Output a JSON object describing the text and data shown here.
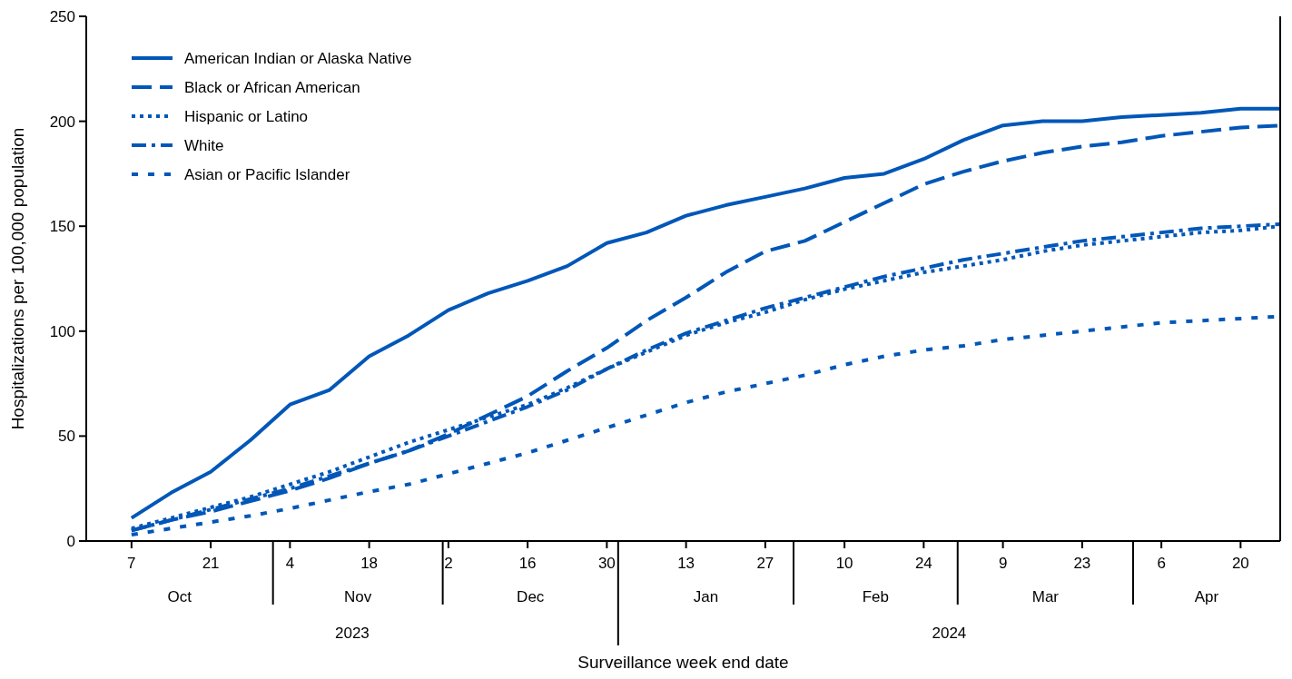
{
  "chart_data": {
    "type": "line",
    "xlabel": "Surveillance week end date",
    "ylabel": "Hospitalizations per 100,000 population",
    "x": [
      "2023-10-07",
      "2023-10-14",
      "2023-10-21",
      "2023-10-28",
      "2023-11-04",
      "2023-11-11",
      "2023-11-18",
      "2023-11-25",
      "2023-12-02",
      "2023-12-09",
      "2023-12-16",
      "2023-12-23",
      "2023-12-30",
      "2024-01-06",
      "2024-01-13",
      "2024-01-20",
      "2024-01-27",
      "2024-02-03",
      "2024-02-10",
      "2024-02-17",
      "2024-02-24",
      "2024-03-02",
      "2024-03-09",
      "2024-03-16",
      "2024-03-23",
      "2024-03-30",
      "2024-04-06",
      "2024-04-13",
      "2024-04-20",
      "2024-04-27"
    ],
    "series": [
      {
        "name": "American Indian or Alaska Native",
        "color": "#0057b8",
        "line_style": "solid",
        "values": [
          11,
          23,
          33,
          48,
          65,
          72,
          88,
          98,
          110,
          118,
          124,
          131,
          142,
          147,
          155,
          160,
          164,
          168,
          173,
          175,
          182,
          191,
          198,
          200,
          200,
          202,
          203,
          204,
          206,
          206
        ]
      },
      {
        "name": "Black or African American",
        "color": "#0057b8",
        "line_style": "dashed",
        "values": [
          5,
          10,
          14,
          19,
          24,
          30,
          37,
          43,
          51,
          60,
          69,
          81,
          92,
          105,
          116,
          128,
          138,
          143,
          152,
          161,
          170,
          176,
          181,
          185,
          188,
          190,
          193,
          195,
          197,
          198
        ]
      },
      {
        "name": "Hispanic or Latino",
        "color": "#0057b8",
        "line_style": "dotted",
        "values": [
          6,
          11,
          16,
          21,
          27,
          33,
          40,
          47,
          53,
          59,
          65,
          73,
          82,
          90,
          98,
          104,
          109,
          115,
          120,
          124,
          128,
          131,
          134,
          138,
          141,
          143,
          145,
          147,
          148,
          150
        ]
      },
      {
        "name": "White",
        "color": "#0057b8",
        "line_style": "dashdot",
        "values": [
          5,
          10,
          15,
          20,
          25,
          31,
          37,
          43,
          50,
          57,
          64,
          72,
          82,
          91,
          99,
          105,
          111,
          116,
          121,
          126,
          130,
          134,
          137,
          140,
          143,
          145,
          147,
          149,
          150,
          151
        ]
      },
      {
        "name": "Asian or Pacific Islander",
        "color": "#0057b8",
        "line_style": "loosedotted",
        "values": [
          3,
          6,
          9,
          12,
          15.5,
          19.5,
          23.5,
          27,
          32,
          37,
          42,
          48,
          54,
          60,
          66,
          71,
          75,
          79,
          84,
          88,
          91,
          93,
          96,
          98,
          100,
          102,
          104,
          105,
          106,
          107
        ]
      }
    ],
    "xlim": [
      "2023-09-29",
      "2024-04-27"
    ],
    "xticks": [
      {
        "value": "2023-10-07",
        "label": "7"
      },
      {
        "value": "2023-10-21",
        "label": "21"
      },
      {
        "value": "2023-11-04",
        "label": "4"
      },
      {
        "value": "2023-11-18",
        "label": "18"
      },
      {
        "value": "2023-12-02",
        "label": "2"
      },
      {
        "value": "2023-12-16",
        "label": "16"
      },
      {
        "value": "2023-12-30",
        "label": "30"
      },
      {
        "value": "2024-01-13",
        "label": "13"
      },
      {
        "value": "2024-01-27",
        "label": "27"
      },
      {
        "value": "2024-02-10",
        "label": "10"
      },
      {
        "value": "2024-02-24",
        "label": "24"
      },
      {
        "value": "2024-03-09",
        "label": "9"
      },
      {
        "value": "2024-03-23",
        "label": "23"
      },
      {
        "value": "2024-04-06",
        "label": "6"
      },
      {
        "value": "2024-04-20",
        "label": "20"
      }
    ],
    "ylim": [
      0,
      250
    ],
    "yticks": [
      0,
      50,
      100,
      150,
      200,
      250
    ],
    "annotations": [
      "Oct",
      "Nov",
      "Dec",
      "Jan",
      "Feb",
      "Mar",
      "Apr",
      "2023",
      "2024"
    ],
    "legend": "top left",
    "grid": false
  }
}
